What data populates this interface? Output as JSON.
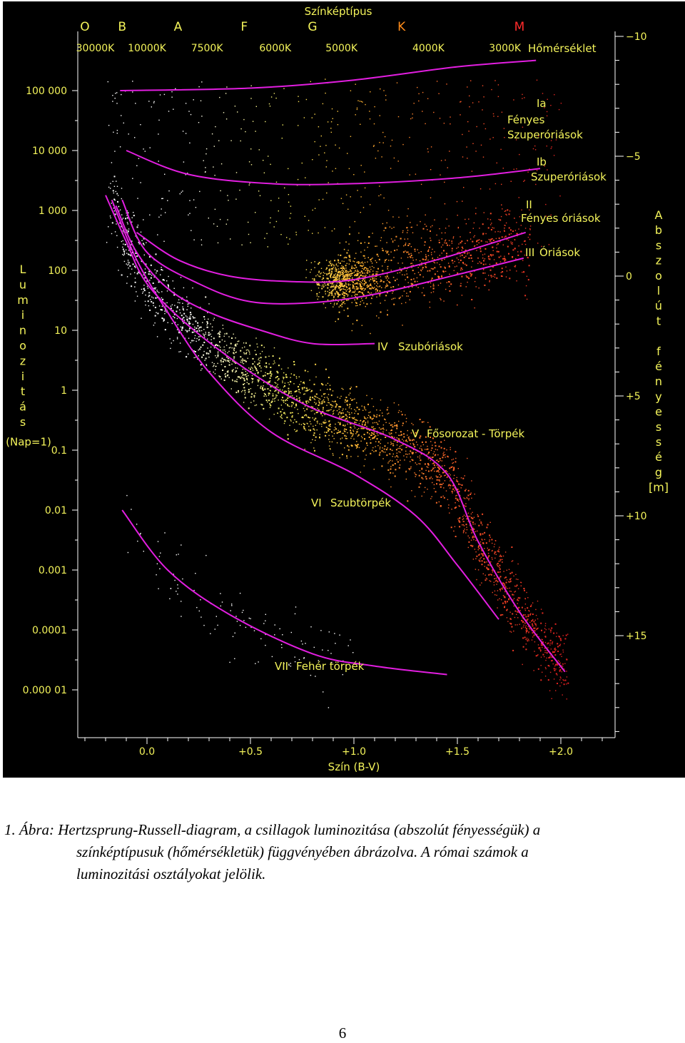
{
  "chart_data": {
    "type": "scatter",
    "title": "Színképtípus",
    "xlabel": "Szín (B-V)",
    "xlim": [
      -0.35,
      2.3
    ],
    "x_ticks": [
      0.0,
      0.5,
      1.0,
      1.5,
      2.0
    ],
    "x_tick_labels": [
      "0.0",
      "+0.5",
      "+1.0",
      "+1.5",
      "+2.0"
    ],
    "ylabel_left": "Luminozitás (Nap=1)",
    "y_scale": "log",
    "ylim": [
      1e-06,
      3000000
    ],
    "y_ticks": [
      100000,
      10000,
      1000,
      100,
      10,
      1,
      0.1,
      0.01,
      0.001,
      0.0001,
      1e-05
    ],
    "y_tick_labels": [
      "100 000",
      "10 000",
      "1 000",
      "100",
      "10",
      "1",
      "0.1",
      "0.01",
      "0.001",
      "0.0001",
      "0.000 01"
    ],
    "ylabel_right": "Abszolút fényesség [m]",
    "right_ticks": [
      -10,
      -5,
      0,
      5,
      10,
      15
    ],
    "right_tick_labels": [
      "−10",
      "−5",
      "0",
      "+5",
      "+10",
      "+15"
    ],
    "spectral_types": [
      {
        "label": "O",
        "x": -0.3,
        "color": "#f3f35a"
      },
      {
        "label": "B",
        "x": -0.12,
        "color": "#f3f35a"
      },
      {
        "label": "A",
        "x": 0.15,
        "color": "#f3f35a"
      },
      {
        "label": "F",
        "x": 0.47,
        "color": "#f3f35a"
      },
      {
        "label": "G",
        "x": 0.8,
        "color": "#f3f35a"
      },
      {
        "label": "K",
        "x": 1.23,
        "color": "#ff8c1a"
      },
      {
        "label": "M",
        "x": 1.8,
        "color": "#ff2b2b"
      }
    ],
    "temperature_label": "Hőmérséklet",
    "temperatures": [
      {
        "label": "30000K",
        "x": -0.25
      },
      {
        "label": "10000K",
        "x": 0.0
      },
      {
        "label": "7500K",
        "x": 0.29
      },
      {
        "label": "6000K",
        "x": 0.62
      },
      {
        "label": "5000K",
        "x": 0.94
      },
      {
        "label": "4000K",
        "x": 1.36
      },
      {
        "label": "3000K",
        "x": 1.73
      }
    ],
    "luminosity_classes": [
      {
        "label": "Ia Fényes Szuperóriások",
        "lines": [
          "Ia",
          "Fényes",
          "Szuperóriások"
        ],
        "points": [
          [
            -0.13,
            100000
          ],
          [
            0.5,
            110000
          ],
          [
            1.0,
            150000
          ],
          [
            1.5,
            250000
          ],
          [
            1.88,
            320000
          ]
        ]
      },
      {
        "label": "Ib Szuperóriások",
        "lines": [
          "Ib",
          "Szuperóriások"
        ],
        "points": [
          [
            -0.1,
            10000
          ],
          [
            0.2,
            4000
          ],
          [
            0.6,
            2800
          ],
          [
            1.0,
            2800
          ],
          [
            1.5,
            3500
          ],
          [
            1.9,
            5000
          ]
        ]
      },
      {
        "label": "II Fényes óriások",
        "lines": [
          "II",
          "Fényes óriások"
        ],
        "points": [
          [
            -0.05,
            430
          ],
          [
            0.15,
            150
          ],
          [
            0.4,
            80
          ],
          [
            0.7,
            65
          ],
          [
            1.0,
            70
          ],
          [
            1.4,
            150
          ],
          [
            1.83,
            430
          ]
        ]
      },
      {
        "label": "III Óriások",
        "lines": [
          "III",
          "Óriások"
        ],
        "points": [
          [
            -0.12,
            1500
          ],
          [
            0.0,
            200
          ],
          [
            0.25,
            60
          ],
          [
            0.5,
            30
          ],
          [
            0.8,
            29
          ],
          [
            1.1,
            40
          ],
          [
            1.5,
            85
          ],
          [
            1.82,
            160
          ]
        ]
      },
      {
        "label": "IV Szubóriások",
        "lines": [
          "IV",
          "Szubóriások"
        ],
        "points": [
          [
            -0.15,
            1200
          ],
          [
            -0.05,
            200
          ],
          [
            0.1,
            50
          ],
          [
            0.3,
            20
          ],
          [
            0.55,
            10
          ],
          [
            0.8,
            6
          ],
          [
            1.1,
            6
          ]
        ]
      },
      {
        "label": "V Fősorozat - Törpék",
        "lines": [
          "V",
          "Fősorozat - Törpék"
        ],
        "points": [
          [
            -0.2,
            1800
          ],
          [
            -0.1,
            300
          ],
          [
            0.0,
            60
          ],
          [
            0.2,
            12
          ],
          [
            0.5,
            2
          ],
          [
            0.8,
            0.5
          ],
          [
            1.2,
            0.15
          ],
          [
            1.45,
            0.04
          ],
          [
            1.6,
            0.003
          ],
          [
            1.8,
            0.0002
          ],
          [
            2.02,
            2e-05
          ]
        ]
      },
      {
        "label": "VI Szubtörpék",
        "lines": [
          "VI",
          "Szubtörpék"
        ],
        "points": [
          [
            -0.17,
            1500
          ],
          [
            -0.05,
            150
          ],
          [
            0.1,
            20
          ],
          [
            0.3,
            2
          ],
          [
            0.6,
            0.2
          ],
          [
            1.0,
            0.04
          ],
          [
            1.3,
            0.008
          ],
          [
            1.5,
            0.0012
          ],
          [
            1.7,
            0.00015
          ]
        ]
      },
      {
        "label": "VII Fehér törpék",
        "lines": [
          "VII",
          "Fehér törpék"
        ],
        "points": [
          [
            -0.12,
            0.01
          ],
          [
            0.1,
            0.001
          ],
          [
            0.4,
            0.00018
          ],
          [
            0.8,
            4e-05
          ],
          [
            1.1,
            2.5e-05
          ],
          [
            1.45,
            1.8e-05
          ]
        ]
      }
    ],
    "point_populations": [
      {
        "name": "main-sequence",
        "color_range": [
          "#ffffff",
          "#ff3010"
        ],
        "count": 2500
      },
      {
        "name": "giant-branch",
        "color_range": [
          "#ffe040",
          "#ff3010"
        ],
        "count": 1400
      },
      {
        "name": "supergiants",
        "color_range": [
          "#ffffff",
          "#ff4020"
        ],
        "count": 500
      },
      {
        "name": "white-dwarfs",
        "color_range": [
          "#ffffff",
          "#ffffff"
        ],
        "count": 120
      }
    ],
    "grid": false,
    "legend": "none",
    "colors": {
      "background": "#000000",
      "axis_text": "#f3f35a",
      "curve": "#e21ee0",
      "class_label": "#f3f35a",
      "frame": "#ffffff"
    }
  },
  "caption": {
    "line1": "1. Ábra: Hertzsprung-Russell-diagram, a csillagok luminozitása (abszolút fényességük) a",
    "line2": "színképtípusuk (hőmérsékletük) függvényében ábrázolva. A római számok a",
    "line3": "luminozitási osztályokat jelölik."
  },
  "page_number": "6"
}
